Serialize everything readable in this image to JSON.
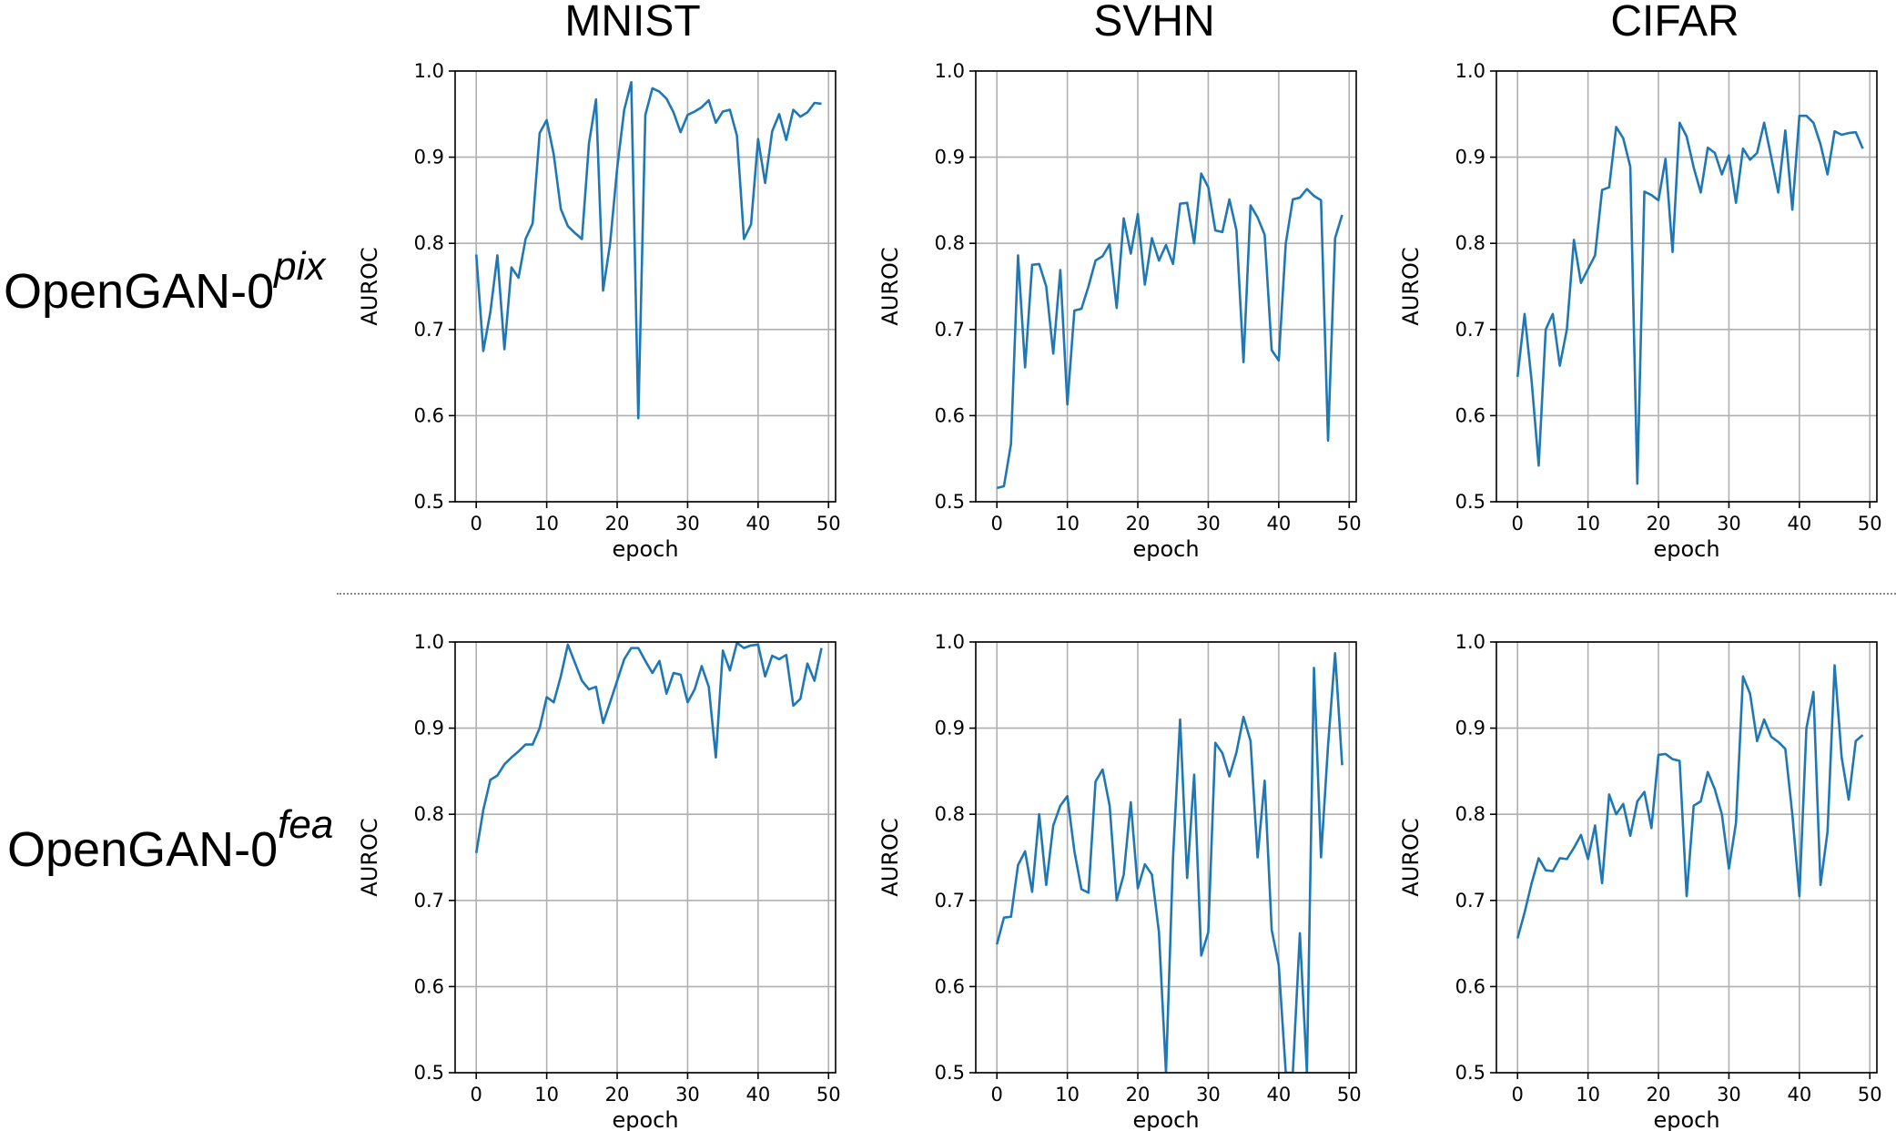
{
  "column_titles": [
    "MNIST",
    "SVHN",
    "CIFAR"
  ],
  "row_labels": [
    {
      "base": "OpenGAN-0",
      "sup": "pix"
    },
    {
      "base": "OpenGAN-0",
      "sup": "fea"
    }
  ],
  "line_color": "#1f77b4",
  "chart_data": [
    {
      "type": "line",
      "panel": "MNIST pix",
      "xlabel": "epoch",
      "ylabel": "AUROC",
      "xlim": [
        -3,
        51
      ],
      "ylim": [
        0.5,
        1.0
      ],
      "grid": true,
      "xticks": [
        0,
        10,
        20,
        30,
        40,
        50
      ],
      "yticks": [
        0.5,
        0.6,
        0.7,
        0.8,
        0.9,
        1.0
      ],
      "x": [
        0,
        1,
        2,
        3,
        4,
        5,
        6,
        7,
        8,
        9,
        10,
        11,
        12,
        13,
        14,
        15,
        16,
        17,
        18,
        19,
        20,
        21,
        22,
        23,
        24,
        25,
        26,
        27,
        28,
        29,
        30,
        31,
        32,
        33,
        34,
        35,
        36,
        37,
        38,
        39,
        40,
        41,
        42,
        43,
        44,
        45,
        46,
        47,
        48,
        49
      ],
      "y": [
        0.787,
        0.675,
        0.72,
        0.786,
        0.677,
        0.772,
        0.76,
        0.805,
        0.823,
        0.928,
        0.943,
        0.903,
        0.84,
        0.82,
        0.812,
        0.805,
        0.916,
        0.967,
        0.745,
        0.8,
        0.887,
        0.955,
        0.987,
        0.597,
        0.949,
        0.98,
        0.976,
        0.968,
        0.952,
        0.929,
        0.949,
        0.953,
        0.958,
        0.966,
        0.94,
        0.953,
        0.955,
        0.925,
        0.805,
        0.822,
        0.921,
        0.87,
        0.93,
        0.95,
        0.92,
        0.955,
        0.947,
        0.952,
        0.963,
        0.962
      ]
    },
    {
      "type": "line",
      "panel": "SVHN pix",
      "xlabel": "epoch",
      "ylabel": "AUROC",
      "xlim": [
        -3,
        51
      ],
      "ylim": [
        0.5,
        1.0
      ],
      "grid": true,
      "xticks": [
        0,
        10,
        20,
        30,
        40,
        50
      ],
      "yticks": [
        0.5,
        0.6,
        0.7,
        0.8,
        0.9,
        1.0
      ],
      "x": [
        0,
        1,
        2,
        3,
        4,
        5,
        6,
        7,
        8,
        9,
        10,
        11,
        12,
        13,
        14,
        15,
        16,
        17,
        18,
        19,
        20,
        21,
        22,
        23,
        24,
        25,
        26,
        27,
        28,
        29,
        30,
        31,
        32,
        33,
        34,
        35,
        36,
        37,
        38,
        39,
        40,
        41,
        42,
        43,
        44,
        45,
        46,
        47,
        48,
        49
      ],
      "y": [
        0.516,
        0.518,
        0.567,
        0.786,
        0.656,
        0.775,
        0.776,
        0.75,
        0.672,
        0.769,
        0.613,
        0.722,
        0.724,
        0.75,
        0.78,
        0.785,
        0.799,
        0.725,
        0.829,
        0.788,
        0.834,
        0.752,
        0.806,
        0.78,
        0.798,
        0.776,
        0.846,
        0.847,
        0.8,
        0.881,
        0.865,
        0.815,
        0.813,
        0.851,
        0.815,
        0.662,
        0.844,
        0.83,
        0.81,
        0.676,
        0.664,
        0.8,
        0.851,
        0.853,
        0.863,
        0.855,
        0.85,
        0.571,
        0.806,
        0.833
      ]
    },
    {
      "type": "line",
      "panel": "CIFAR pix",
      "xlabel": "epoch",
      "ylabel": "AUROC",
      "xlim": [
        -3,
        51
      ],
      "ylim": [
        0.5,
        1.0
      ],
      "grid": true,
      "xticks": [
        0,
        10,
        20,
        30,
        40,
        50
      ],
      "yticks": [
        0.5,
        0.6,
        0.7,
        0.8,
        0.9,
        1.0
      ],
      "x": [
        0,
        1,
        2,
        3,
        4,
        5,
        6,
        7,
        8,
        9,
        10,
        11,
        12,
        13,
        14,
        15,
        16,
        17,
        18,
        19,
        20,
        21,
        22,
        23,
        24,
        25,
        26,
        27,
        28,
        29,
        30,
        31,
        32,
        33,
        34,
        35,
        36,
        37,
        38,
        39,
        40,
        41,
        42,
        43,
        44,
        45,
        46,
        47,
        48,
        49
      ],
      "y": [
        0.645,
        0.718,
        0.64,
        0.542,
        0.7,
        0.718,
        0.658,
        0.7,
        0.804,
        0.754,
        0.77,
        0.786,
        0.862,
        0.865,
        0.935,
        0.922,
        0.889,
        0.521,
        0.86,
        0.856,
        0.85,
        0.898,
        0.79,
        0.94,
        0.924,
        0.888,
        0.859,
        0.911,
        0.905,
        0.88,
        0.902,
        0.847,
        0.91,
        0.897,
        0.905,
        0.94,
        0.9,
        0.859,
        0.931,
        0.839,
        0.948,
        0.948,
        0.94,
        0.915,
        0.88,
        0.93,
        0.926,
        0.928,
        0.929,
        0.91
      ]
    },
    {
      "type": "line",
      "panel": "MNIST fea",
      "xlabel": "epoch",
      "ylabel": "AUROC",
      "xlim": [
        -3,
        51
      ],
      "ylim": [
        0.5,
        1.0
      ],
      "grid": true,
      "xticks": [
        0,
        10,
        20,
        30,
        40,
        50
      ],
      "yticks": [
        0.5,
        0.6,
        0.7,
        0.8,
        0.9,
        1.0
      ],
      "x": [
        0,
        1,
        2,
        3,
        4,
        5,
        6,
        7,
        8,
        9,
        10,
        11,
        12,
        13,
        14,
        15,
        16,
        17,
        18,
        19,
        20,
        21,
        22,
        23,
        24,
        25,
        26,
        27,
        28,
        29,
        30,
        31,
        32,
        33,
        34,
        35,
        36,
        37,
        38,
        39,
        40,
        41,
        42,
        43,
        44,
        45,
        46,
        47,
        48,
        49
      ],
      "y": [
        0.755,
        0.805,
        0.84,
        0.845,
        0.858,
        0.866,
        0.873,
        0.881,
        0.881,
        0.9,
        0.936,
        0.93,
        0.96,
        0.997,
        0.976,
        0.955,
        0.945,
        0.948,
        0.906,
        0.93,
        0.955,
        0.98,
        0.993,
        0.993,
        0.978,
        0.964,
        0.978,
        0.94,
        0.964,
        0.962,
        0.93,
        0.945,
        0.972,
        0.948,
        0.866,
        0.99,
        0.967,
        0.999,
        0.993,
        0.996,
        0.997,
        0.96,
        0.984,
        0.98,
        0.985,
        0.926,
        0.934,
        0.975,
        0.955,
        0.993
      ]
    },
    {
      "type": "line",
      "panel": "SVHN fea",
      "xlabel": "epoch",
      "ylabel": "AUROC",
      "xlim": [
        -3,
        51
      ],
      "ylim": [
        0.5,
        1.0
      ],
      "grid": true,
      "xticks": [
        0,
        10,
        20,
        30,
        40,
        50
      ],
      "yticks": [
        0.5,
        0.6,
        0.7,
        0.8,
        0.9,
        1.0
      ],
      "x": [
        0,
        1,
        2,
        3,
        4,
        5,
        6,
        7,
        8,
        9,
        10,
        11,
        12,
        13,
        14,
        15,
        16,
        17,
        18,
        19,
        20,
        21,
        22,
        23,
        24,
        25,
        26,
        27,
        28,
        29,
        30,
        31,
        32,
        33,
        34,
        35,
        36,
        37,
        38,
        39,
        40,
        41,
        42,
        43,
        44,
        45,
        46,
        47,
        48,
        49
      ],
      "y": [
        0.649,
        0.68,
        0.681,
        0.741,
        0.757,
        0.71,
        0.8,
        0.718,
        0.787,
        0.81,
        0.821,
        0.757,
        0.713,
        0.709,
        0.838,
        0.852,
        0.81,
        0.7,
        0.73,
        0.814,
        0.714,
        0.742,
        0.73,
        0.663,
        0.5,
        0.75,
        0.91,
        0.726,
        0.846,
        0.636,
        0.663,
        0.883,
        0.871,
        0.844,
        0.872,
        0.913,
        0.885,
        0.75,
        0.839,
        0.666,
        0.625,
        0.5,
        0.5,
        0.662,
        0.5,
        0.97,
        0.75,
        0.88,
        0.987,
        0.857
      ]
    },
    {
      "type": "line",
      "panel": "CIFAR fea",
      "xlabel": "epoch",
      "ylabel": "AUROC",
      "xlim": [
        -3,
        51
      ],
      "ylim": [
        0.5,
        1.0
      ],
      "grid": true,
      "xticks": [
        0,
        10,
        20,
        30,
        40,
        50
      ],
      "yticks": [
        0.5,
        0.6,
        0.7,
        0.8,
        0.9,
        1.0
      ],
      "x": [
        0,
        1,
        2,
        3,
        4,
        5,
        6,
        7,
        8,
        9,
        10,
        11,
        12,
        13,
        14,
        15,
        16,
        17,
        18,
        19,
        20,
        21,
        22,
        23,
        24,
        25,
        26,
        27,
        28,
        29,
        30,
        31,
        32,
        33,
        34,
        35,
        36,
        37,
        38,
        39,
        40,
        41,
        42,
        43,
        44,
        45,
        46,
        47,
        48,
        49
      ],
      "y": [
        0.656,
        0.686,
        0.72,
        0.749,
        0.735,
        0.734,
        0.749,
        0.748,
        0.761,
        0.776,
        0.748,
        0.787,
        0.72,
        0.823,
        0.8,
        0.812,
        0.775,
        0.815,
        0.826,
        0.784,
        0.869,
        0.87,
        0.864,
        0.862,
        0.705,
        0.81,
        0.815,
        0.849,
        0.829,
        0.8,
        0.737,
        0.79,
        0.96,
        0.94,
        0.885,
        0.91,
        0.89,
        0.884,
        0.876,
        0.8,
        0.705,
        0.9,
        0.942,
        0.718,
        0.78,
        0.973,
        0.866,
        0.817,
        0.885,
        0.892
      ]
    }
  ]
}
